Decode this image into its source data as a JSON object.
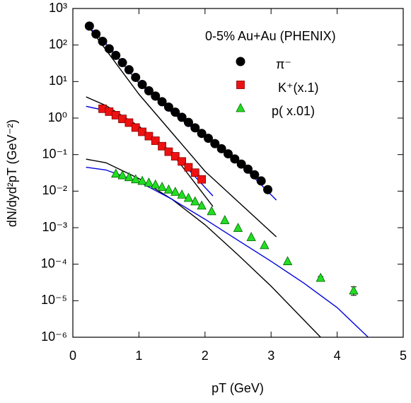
{
  "chart_data": {
    "type": "scatter",
    "xlabel": "pT (GeV)",
    "ylabel": "dN/dyd²pT (GeV⁻²)",
    "legend_title": "0-5% Au+Au (PHENIX)",
    "log_y": true,
    "xlim": [
      0,
      5
    ],
    "ylim": [
      1e-06,
      1000
    ],
    "xticks": [
      0,
      1,
      2,
      3,
      4,
      5
    ],
    "yticks": [
      {
        "value": 1e-06,
        "label": "10⁻⁶"
      },
      {
        "value": 1e-05,
        "label": "10⁻⁵"
      },
      {
        "value": 0.0001,
        "label": "10⁻⁴"
      },
      {
        "value": 0.001,
        "label": "10⁻³"
      },
      {
        "value": 0.01,
        "label": "10⁻²"
      },
      {
        "value": 0.1,
        "label": "10⁻¹"
      },
      {
        "value": 1,
        "label": "10⁰"
      },
      {
        "value": 10,
        "label": "10¹"
      },
      {
        "value": 100,
        "label": "10²"
      },
      {
        "value": 1000,
        "label": "10³"
      }
    ],
    "series": [
      {
        "name": "π⁻",
        "color": "#000000",
        "marker": "circle",
        "x": [
          0.25,
          0.35,
          0.45,
          0.55,
          0.65,
          0.75,
          0.85,
          0.95,
          1.05,
          1.15,
          1.25,
          1.35,
          1.45,
          1.55,
          1.65,
          1.75,
          1.85,
          1.95,
          2.05,
          2.15,
          2.25,
          2.35,
          2.45,
          2.55,
          2.65,
          2.75,
          2.85,
          2.95
        ],
        "values": [
          330,
          200,
          126,
          79,
          52,
          33,
          21,
          13,
          8.3,
          5.6,
          4.0,
          2.8,
          2.0,
          1.45,
          1.05,
          0.76,
          0.54,
          0.38,
          0.28,
          0.2,
          0.145,
          0.105,
          0.076,
          0.055,
          0.04,
          0.028,
          0.019,
          0.011
        ]
      },
      {
        "name": "K⁺(x.1)",
        "color": "#ee1111",
        "marker": "square",
        "x": [
          0.45,
          0.55,
          0.65,
          0.75,
          0.85,
          0.95,
          1.05,
          1.15,
          1.25,
          1.35,
          1.45,
          1.55,
          1.65,
          1.75,
          1.85,
          1.95
        ],
        "values": [
          1.8,
          1.5,
          1.2,
          0.95,
          0.75,
          0.55,
          0.42,
          0.32,
          0.24,
          0.17,
          0.12,
          0.09,
          0.065,
          0.045,
          0.032,
          0.021
        ]
      },
      {
        "name": "p( x.01)",
        "color": "#22dd22",
        "marker": "triangle",
        "x": [
          0.65,
          0.75,
          0.85,
          0.95,
          1.05,
          1.15,
          1.25,
          1.35,
          1.45,
          1.55,
          1.65,
          1.75,
          1.85,
          1.95,
          2.1,
          2.3,
          2.5,
          2.7,
          2.9,
          3.25,
          3.75,
          4.25
        ],
        "values": [
          0.03,
          0.027,
          0.024,
          0.021,
          0.019,
          0.017,
          0.015,
          0.013,
          0.011,
          0.0095,
          0.008,
          0.0065,
          0.0052,
          0.004,
          0.0028,
          0.0016,
          0.00098,
          0.00055,
          0.00033,
          0.00012,
          4.2e-05,
          1.9e-05
        ],
        "errors": [
          null,
          null,
          null,
          null,
          null,
          null,
          null,
          null,
          null,
          null,
          null,
          null,
          null,
          null,
          null,
          null,
          null,
          null,
          null,
          null,
          4e-06,
          5e-06
        ]
      }
    ],
    "lines": [
      {
        "color": "#000000",
        "x": [
          0.25,
          1.0,
          2.0,
          3.08
        ],
        "values": [
          300,
          4.5,
          0.035,
          0.00056
        ]
      },
      {
        "color": "#0000dd",
        "x": [
          0.25,
          0.5,
          1.0,
          1.5,
          2.0,
          2.5,
          3.08
        ],
        "values": [
          300,
          110,
          9,
          1.4,
          0.3,
          0.065,
          0.0057
        ]
      },
      {
        "color": "#000000",
        "x": [
          0.2,
          0.5,
          1.0,
          1.5,
          2.12
        ],
        "values": [
          3.8,
          2.2,
          0.6,
          0.11,
          0.0038
        ]
      },
      {
        "color": "#0000dd",
        "x": [
          0.2,
          0.5,
          1.0,
          1.5,
          2.12
        ],
        "values": [
          2.1,
          1.6,
          0.5,
          0.12,
          0.0074
        ]
      },
      {
        "color": "#000000",
        "x": [
          0.2,
          0.5,
          1.0,
          1.5,
          2.0,
          2.5,
          3.0,
          3.75
        ],
        "values": [
          0.075,
          0.06,
          0.022,
          0.006,
          0.0012,
          0.00018,
          2.5e-05,
          1e-06
        ]
      },
      {
        "color": "#0000dd",
        "x": [
          0.2,
          0.5,
          1.0,
          1.5,
          2.0,
          2.5,
          3.0,
          3.5,
          4.0,
          4.47
        ],
        "values": [
          0.045,
          0.038,
          0.018,
          0.006,
          0.0017,
          0.00045,
          0.00012,
          3e-05,
          6.5e-06,
          1e-06
        ]
      }
    ]
  }
}
